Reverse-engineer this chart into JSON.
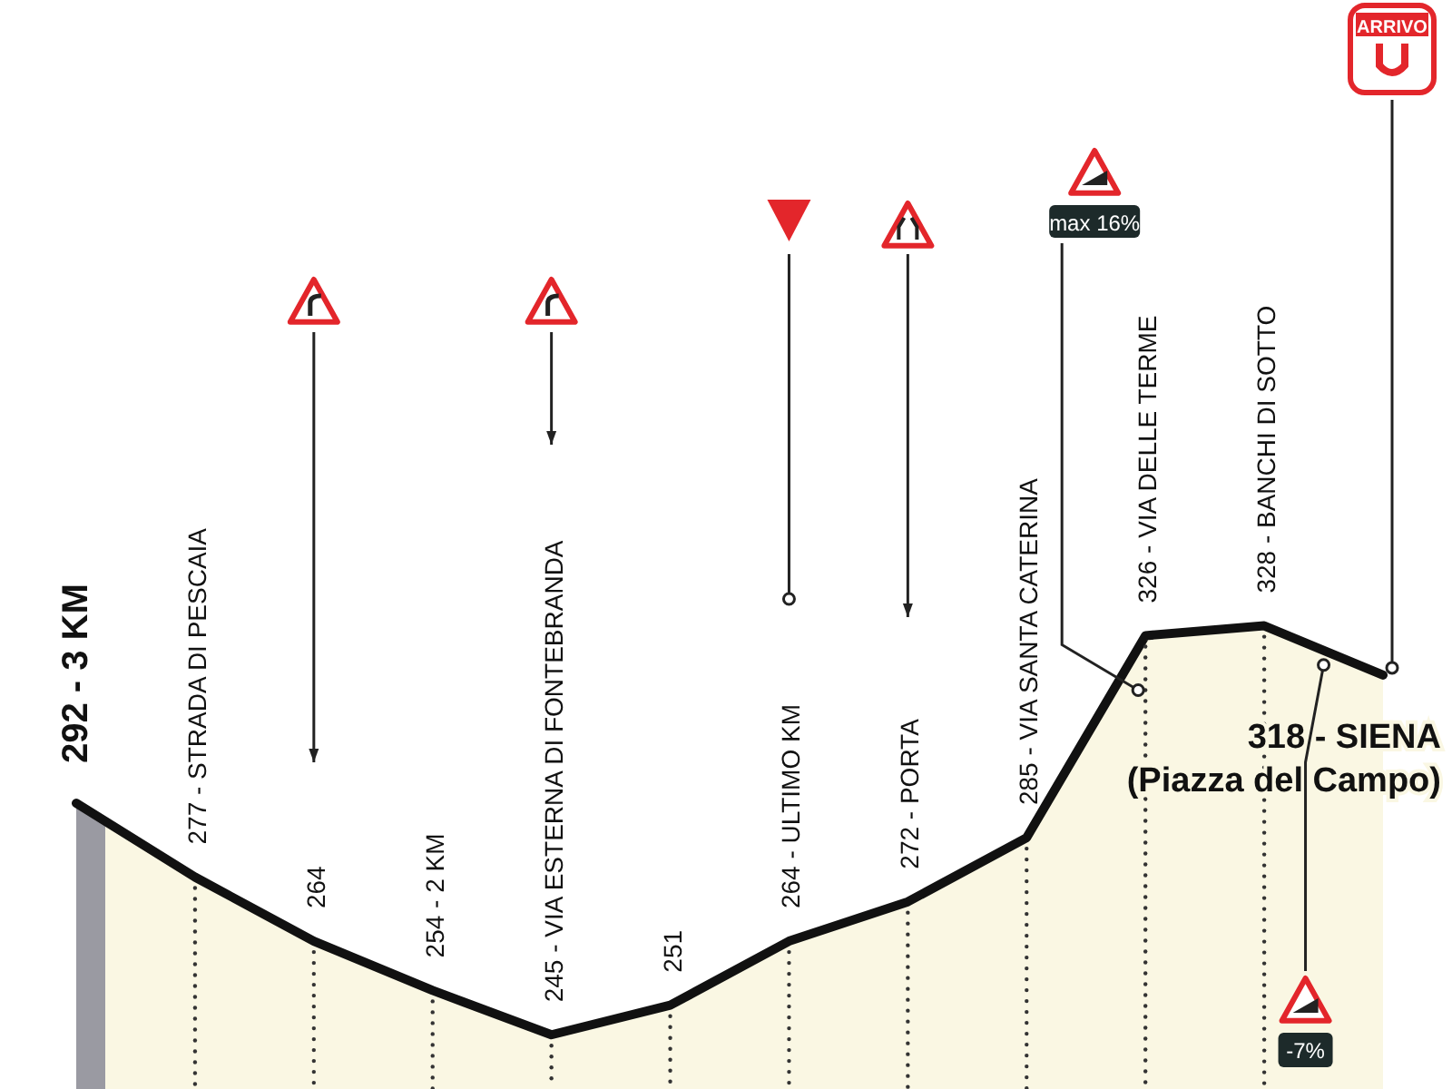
{
  "chart_data": {
    "type": "area",
    "categories": [
      null,
      null,
      null,
      null,
      null,
      null,
      null,
      null,
      null,
      null,
      null,
      null
    ],
    "values": [
      292,
      277,
      264,
      254,
      245,
      251,
      264,
      272,
      285,
      326,
      328,
      318
    ],
    "value_labels": [
      "292 - 3 KM",
      "277 - STRADA DI PESCAIA",
      "264",
      "254 - 2 KM",
      "245 - VIA ESTERNA DI FONTEBRANDA",
      "251",
      "264 - ULTIMO KM",
      "272 - PORTA",
      "285 - VIA SANTA CATERINA",
      "326 - VIA DELLE TERME",
      "328 - BANCHI DI SOTTO",
      "318 - SIENA\n(Piazza del Campo)"
    ],
    "color": "#111111",
    "ylim": [
      234,
      455
    ],
    "annotations": [
      "max 16%",
      "-7%",
      "ARRIVO"
    ]
  }
}
